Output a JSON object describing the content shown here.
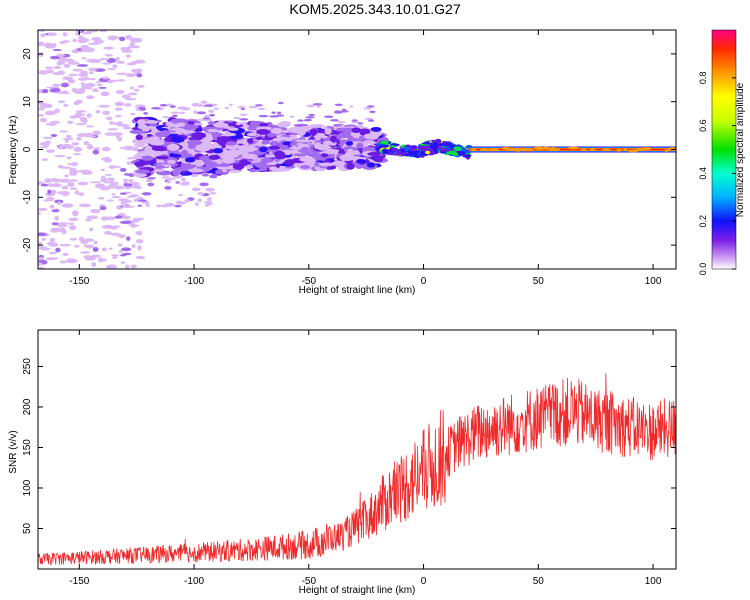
{
  "title": "KOM5.2025.343.10.01.G27",
  "chart_data": [
    {
      "type": "heatmap",
      "title": "KOM5.2025.343.10.01.G27",
      "xlabel": "Height of straight line (km)",
      "ylabel": "Frequency (Hz)",
      "xlim": [
        -168,
        110
      ],
      "ylim": [
        -25,
        25
      ],
      "xticks": [
        -150,
        -100,
        -50,
        0,
        50,
        100
      ],
      "yticks": [
        -20,
        -10,
        0,
        10,
        20
      ],
      "colorbar": {
        "label": "Normalized spectral amplitude",
        "range": [
          0.0,
          1.0
        ],
        "ticks": [
          "0.0",
          "0.2",
          "0.4",
          "0.6",
          "0.8"
        ]
      },
      "description_regions": [
        {
          "x_range": [
            -168,
            -125
          ],
          "freq_range": [
            -25,
            25
          ],
          "amplitude": 0.05
        },
        {
          "x_range": [
            -130,
            -20
          ],
          "freq_range": [
            -8,
            9
          ],
          "amplitude": 0.25
        },
        {
          "x_range": [
            -20,
            20
          ],
          "freq_range": [
            -1.5,
            1.5
          ],
          "amplitude": 0.6
        },
        {
          "x_range": [
            20,
            110
          ],
          "freq_range": [
            -0.5,
            0.5
          ],
          "amplitude": 1.0
        }
      ]
    },
    {
      "type": "line",
      "xlabel": "Height of straight line (km)",
      "ylabel": "SNR (v/v)",
      "xlim": [
        -168,
        110
      ],
      "ylim": [
        0,
        295
      ],
      "xticks": [
        -150,
        -100,
        -50,
        0,
        50,
        100
      ],
      "yticks": [
        50,
        100,
        150,
        200,
        250
      ],
      "series": [
        {
          "name": "SNR",
          "color": "#ee2a2a",
          "trend_x": [
            -168,
            -150,
            -125,
            -100,
            -75,
            -50,
            -35,
            -25,
            -15,
            -5,
            5,
            15,
            25,
            40,
            55,
            65,
            75,
            90,
            100,
            110
          ],
          "trend_y": [
            12,
            14,
            17,
            20,
            24,
            30,
            42,
            60,
            88,
            110,
            130,
            155,
            170,
            180,
            190,
            195,
            185,
            175,
            170,
            175
          ]
        }
      ]
    }
  ]
}
